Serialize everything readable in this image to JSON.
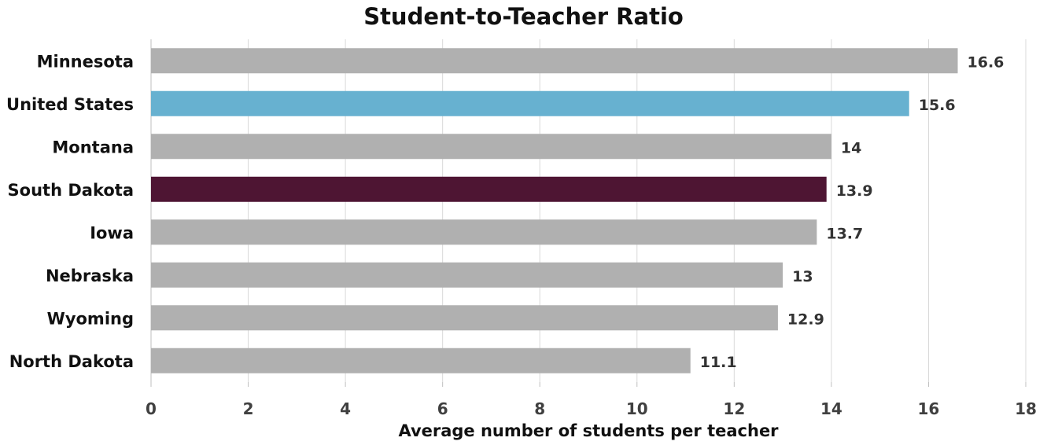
{
  "chart_data": {
    "type": "bar",
    "orientation": "horizontal",
    "title": "Student-to-Teacher Ratio",
    "xlabel": "Average number of students per teacher",
    "ylabel": "",
    "categories": [
      "Minnesota",
      "United States",
      "Montana",
      "South Dakota",
      "Iowa",
      "Nebraska",
      "Wyoming",
      "North Dakota"
    ],
    "values": [
      16.6,
      15.6,
      14,
      13.9,
      13.7,
      13,
      12.9,
      11.1
    ],
    "data_labels": [
      "16.6",
      "15.6",
      "14",
      "13.9",
      "13.7",
      "13",
      "12.9",
      "11.1"
    ],
    "bar_colors": [
      "#b0b0b0",
      "#67b1d0",
      "#b0b0b0",
      "#4e1533",
      "#b0b0b0",
      "#b0b0b0",
      "#b0b0b0",
      "#b0b0b0"
    ],
    "xlim": [
      0,
      18
    ],
    "x_ticks": [
      0,
      2,
      4,
      6,
      8,
      10,
      12,
      14,
      16,
      18
    ],
    "grid": true,
    "legend": "none"
  }
}
